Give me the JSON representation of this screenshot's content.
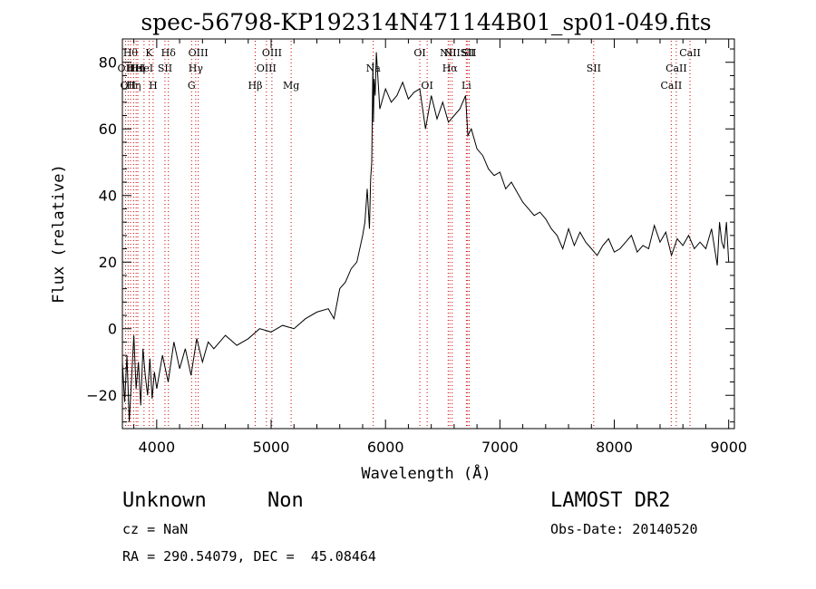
{
  "chart_data": {
    "type": "line",
    "title": "spec-56798-KP192314N471144B01_sp01-049.fits",
    "xlabel": "Wavelength (Å)",
    "ylabel": "Flux (relative)",
    "xlim": [
      3700,
      9050
    ],
    "ylim": [
      -30,
      87
    ],
    "xticks": [
      4000,
      5000,
      6000,
      7000,
      8000,
      9000
    ],
    "yticks": [
      -20,
      0,
      20,
      40,
      60,
      80
    ],
    "grid": false,
    "line_color": "#000000",
    "marker_color": "#cc0000",
    "series": [
      {
        "x": [
          3700,
          3720,
          3740,
          3760,
          3780,
          3800,
          3820,
          3840,
          3860,
          3880,
          3900,
          3920,
          3940,
          3960,
          3980,
          4000,
          4050,
          4100,
          4150,
          4200,
          4250,
          4300,
          4350,
          4400,
          4450,
          4500,
          4600,
          4700,
          4800,
          4900,
          5000,
          5100,
          5200,
          5300,
          5400,
          5500,
          5550,
          5600,
          5650,
          5700,
          5750,
          5800,
          5820,
          5840,
          5860,
          5870,
          5880,
          5890,
          5895,
          5900,
          5910,
          5920,
          5950,
          6000,
          6050,
          6100,
          6150,
          6200,
          6250,
          6300,
          6350,
          6400,
          6450,
          6500,
          6550,
          6600,
          6650,
          6700,
          6720,
          6750,
          6800,
          6850,
          6900,
          6950,
          7000,
          7050,
          7100,
          7150,
          7200,
          7250,
          7300,
          7350,
          7400,
          7450,
          7500,
          7550,
          7600,
          7650,
          7700,
          7750,
          7800,
          7850,
          7900,
          7950,
          8000,
          8050,
          8100,
          8150,
          8200,
          8250,
          8300,
          8350,
          8400,
          8450,
          8500,
          8550,
          8600,
          8650,
          8700,
          8750,
          8800,
          8850,
          8900,
          8920,
          8940,
          8960,
          8980,
          9000
        ],
        "y": [
          -10,
          -22,
          -8,
          -28,
          -15,
          -2,
          -18,
          -10,
          -23,
          -6,
          -14,
          -20,
          -9,
          -21,
          -13,
          -18,
          -8,
          -16,
          -4,
          -12,
          -6,
          -14,
          -3,
          -10,
          -4,
          -6,
          -2,
          -5,
          -3,
          0,
          -1,
          1,
          0,
          3,
          5,
          6,
          3,
          12,
          14,
          18,
          20,
          28,
          32,
          42,
          30,
          45,
          50,
          80,
          62,
          75,
          70,
          83,
          66,
          72,
          68,
          70,
          74,
          69,
          71,
          72,
          60,
          70,
          63,
          68,
          62,
          64,
          66,
          70,
          58,
          60,
          54,
          52,
          48,
          46,
          47,
          42,
          44,
          41,
          38,
          36,
          34,
          35,
          33,
          30,
          28,
          24,
          30,
          25,
          29,
          26,
          24,
          22,
          25,
          27,
          23,
          24,
          26,
          28,
          23,
          25,
          24,
          31,
          26,
          29,
          22,
          27,
          25,
          28,
          24,
          26,
          24,
          30,
          19,
          32,
          26,
          24,
          32,
          20
        ],
        "legend": ""
      }
    ],
    "lines": [
      {
        "x": 3727,
        "labels": [
          "OII"
        ],
        "rows": [
          1
        ]
      },
      {
        "x": 3750,
        "labels": [
          "OII"
        ],
        "rows": [
          2
        ]
      },
      {
        "x": 3771,
        "labels": [
          "Hθ"
        ],
        "rows": [
          0
        ]
      },
      {
        "x": 3798,
        "labels": [
          "Hη"
        ],
        "rows": [
          2
        ]
      },
      {
        "x": 3820,
        "labels": [
          "HeI"
        ],
        "rows": [
          1
        ]
      },
      {
        "x": 3835,
        "labels": [
          "Hη"
        ],
        "rows": [
          1
        ]
      },
      {
        "x": 3889,
        "labels": [
          "HeI"
        ],
        "rows": [
          1
        ]
      },
      {
        "x": 3934,
        "labels": [
          "K"
        ],
        "rows": [
          0
        ]
      },
      {
        "x": 3969,
        "labels": [
          "H"
        ],
        "rows": [
          2
        ]
      },
      {
        "x": 4072,
        "labels": [
          "SII"
        ],
        "rows": [
          1
        ]
      },
      {
        "x": 4102,
        "labels": [
          "Hδ"
        ],
        "rows": [
          0
        ]
      },
      {
        "x": 4305,
        "labels": [
          "G"
        ],
        "rows": [
          2
        ]
      },
      {
        "x": 4341,
        "labels": [
          "Hγ"
        ],
        "rows": [
          1
        ]
      },
      {
        "x": 4363,
        "labels": [
          "OIII"
        ],
        "rows": [
          0
        ]
      },
      {
        "x": 4861,
        "labels": [
          "Hβ"
        ],
        "rows": [
          2
        ]
      },
      {
        "x": 4959,
        "labels": [
          "OIII"
        ],
        "rows": [
          1
        ]
      },
      {
        "x": 5007,
        "labels": [
          "OIII"
        ],
        "rows": [
          0
        ]
      },
      {
        "x": 5175,
        "labels": [
          "Mg"
        ],
        "rows": [
          2
        ]
      },
      {
        "x": 5893,
        "labels": [
          "Na"
        ],
        "rows": [
          1
        ]
      },
      {
        "x": 6300,
        "labels": [
          "OI"
        ],
        "rows": [
          0
        ]
      },
      {
        "x": 6364,
        "labels": [
          "OI"
        ],
        "rows": [
          2
        ]
      },
      {
        "x": 6548,
        "labels": [
          "NII"
        ],
        "rows": [
          0
        ]
      },
      {
        "x": 6563,
        "labels": [
          "Hα"
        ],
        "rows": [
          1
        ]
      },
      {
        "x": 6583,
        "labels": [
          "NII"
        ],
        "rows": [
          0
        ]
      },
      {
        "x": 6707,
        "labels": [
          "Li"
        ],
        "rows": [
          2
        ]
      },
      {
        "x": 6717,
        "labels": [
          "SII"
        ],
        "rows": [
          0
        ]
      },
      {
        "x": 6731,
        "labels": [
          "SII"
        ],
        "rows": [
          0
        ]
      },
      {
        "x": 7820,
        "labels": [
          "SII"
        ],
        "rows": [
          1
        ]
      },
      {
        "x": 8498,
        "labels": [
          "CaII"
        ],
        "rows": [
          2
        ]
      },
      {
        "x": 8542,
        "labels": [
          "CaII"
        ],
        "rows": [
          1
        ]
      },
      {
        "x": 8662,
        "labels": [
          "CaII"
        ],
        "rows": [
          0
        ]
      }
    ]
  },
  "info": {
    "class": "Unknown",
    "subclass": "Non",
    "survey": "LAMOST DR2",
    "cz": "cz = NaN",
    "obs_date": "Obs-Date: 20140520",
    "radec": "RA = 290.54079, DEC =  45.08464"
  }
}
